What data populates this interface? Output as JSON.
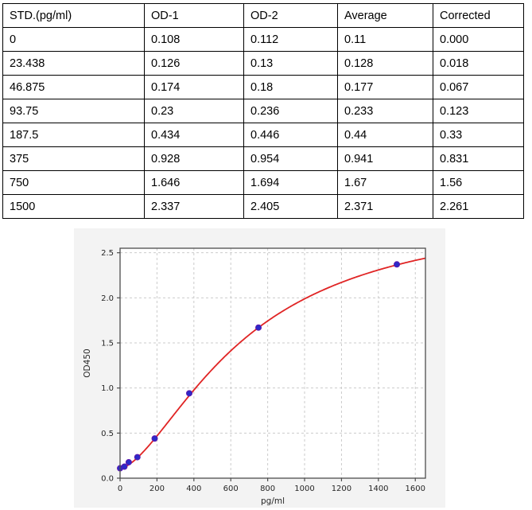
{
  "table": {
    "columns": [
      "STD.(pg/ml)",
      "OD-1",
      "OD-2",
      "Average",
      "Corrected"
    ],
    "rows": [
      [
        "0",
        "0.108",
        "0.112",
        "0.11",
        "0.000"
      ],
      [
        "23.438",
        "0.126",
        "0.13",
        "0.128",
        "0.018"
      ],
      [
        "46.875",
        "0.174",
        "0.18",
        "0.177",
        "0.067"
      ],
      [
        "93.75",
        "0.23",
        "0.236",
        "0.233",
        "0.123"
      ],
      [
        "187.5",
        "0.434",
        "0.446",
        "0.44",
        "0.33"
      ],
      [
        "375",
        "0.928",
        "0.954",
        "0.941",
        "0.831"
      ],
      [
        "750",
        "1.646",
        "1.694",
        "1.67",
        "1.56"
      ],
      [
        "1500",
        "2.337",
        "2.405",
        "2.371",
        "2.261"
      ]
    ]
  },
  "chart_data": {
    "type": "scatter",
    "title": "",
    "xlabel": "pg/ml",
    "ylabel": "OD450",
    "x": [
      0,
      23.438,
      46.875,
      93.75,
      187.5,
      375,
      750,
      1500
    ],
    "y": [
      0.11,
      0.128,
      0.177,
      0.233,
      0.44,
      0.941,
      1.67,
      2.371
    ],
    "fit_curve": {
      "model": "4PL",
      "a": 0.11,
      "b": 1.6,
      "c": 679,
      "d": 3.0
    },
    "xlim": [
      0,
      1655
    ],
    "ylim": [
      0,
      2.55
    ],
    "xticks": [
      0,
      200,
      400,
      600,
      800,
      1000,
      1200,
      1400,
      1600
    ],
    "yticks": [
      0,
      0.5,
      1.0,
      1.5,
      2.0,
      2.5
    ],
    "ytick_labels": [
      "0.0",
      "0.5",
      "1.0",
      "1.5",
      "2.0",
      "2.5"
    ],
    "grid": true,
    "legend": false,
    "colors": {
      "curve": "#e02424",
      "marker": "#2c2ac8",
      "marker_edge": "#5b18b0",
      "figure_bg": "#f3f3f3",
      "plot_bg": "#ffffff",
      "frame": "#4d4d4d",
      "grid": "#cbcbcb"
    }
  }
}
